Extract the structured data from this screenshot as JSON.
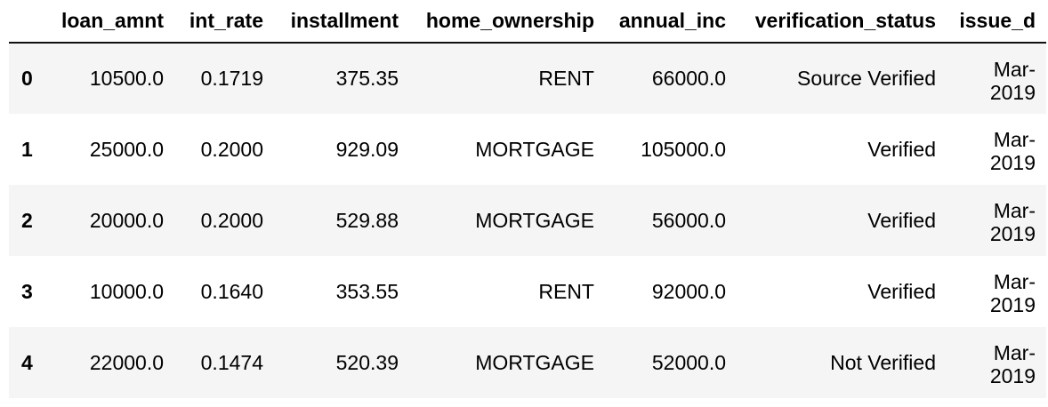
{
  "table": {
    "index_header": "",
    "columns": [
      "loan_amnt",
      "int_rate",
      "installment",
      "home_ownership",
      "annual_inc",
      "verification_status",
      "issue_d"
    ],
    "rows": [
      {
        "index": "0",
        "cells": [
          "10500.0",
          "0.1719",
          "375.35",
          "RENT",
          "66000.0",
          "Source Verified",
          "Mar-2019"
        ]
      },
      {
        "index": "1",
        "cells": [
          "25000.0",
          "0.2000",
          "929.09",
          "MORTGAGE",
          "105000.0",
          "Verified",
          "Mar-2019"
        ]
      },
      {
        "index": "2",
        "cells": [
          "20000.0",
          "0.2000",
          "529.88",
          "MORTGAGE",
          "56000.0",
          "Verified",
          "Mar-2019"
        ]
      },
      {
        "index": "3",
        "cells": [
          "10000.0",
          "0.1640",
          "353.55",
          "RENT",
          "92000.0",
          "Verified",
          "Mar-2019"
        ]
      },
      {
        "index": "4",
        "cells": [
          "22000.0",
          "0.1474",
          "520.39",
          "MORTGAGE",
          "52000.0",
          "Not Verified",
          "Mar-2019"
        ]
      }
    ]
  },
  "colors": {
    "striped_row_background": "#f5f5f5",
    "header_rule": "#111111",
    "text": "#000000"
  }
}
